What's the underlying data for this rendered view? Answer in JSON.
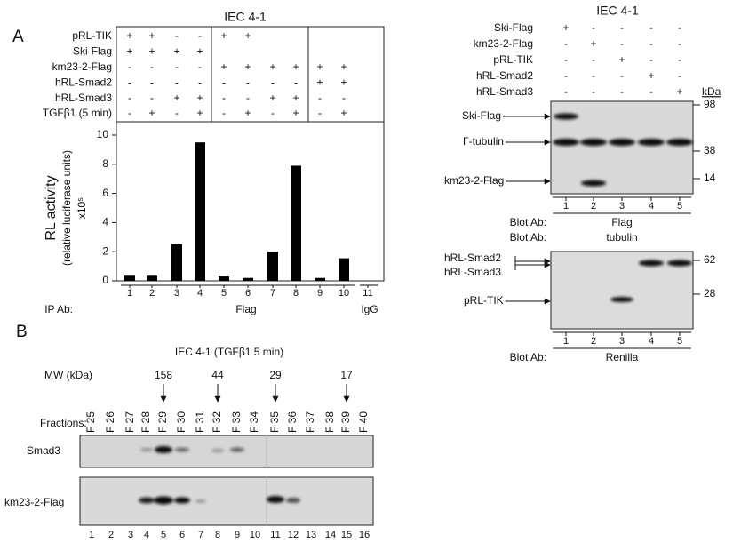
{
  "panel_a": {
    "label": "A",
    "title": "IEC 4-1",
    "conditions": [
      {
        "name": "pRL-TIK",
        "values": [
          "+",
          "+",
          "-",
          "-",
          "+",
          "+",
          null,
          null,
          null,
          null
        ]
      },
      {
        "name": "Ski-Flag",
        "values": [
          "+",
          "+",
          "+",
          "+",
          null,
          null,
          null,
          null,
          null,
          null
        ]
      },
      {
        "name": "km23-2-Flag",
        "values": [
          "-",
          "-",
          "-",
          "-",
          "+",
          "+",
          "+",
          "+",
          "+",
          "+"
        ]
      },
      {
        "name": "hRL-Smad2",
        "values": [
          "-",
          "-",
          "-",
          "-",
          "-",
          "-",
          "-",
          "-",
          "+",
          "+"
        ]
      },
      {
        "name": "hRL-Smad3",
        "values": [
          "-",
          "-",
          "+",
          "+",
          "-",
          "-",
          "+",
          "+",
          "-",
          "-"
        ]
      },
      {
        "name": "TGFβ1 (5 min)",
        "values": [
          "-",
          "+",
          "-",
          "+",
          "-",
          "+",
          "-",
          "+",
          "-",
          "+"
        ]
      }
    ],
    "ip_ab_label": "IP Ab:",
    "ip_ab": [
      "Flag",
      "IgG"
    ]
  },
  "chart_data": {
    "type": "bar",
    "y_label": [
      "RL activity",
      "(relative luciferase units)",
      "x10⁵"
    ],
    "categories": [
      "1",
      "2",
      "3",
      "4",
      "5",
      "6",
      "7",
      "8",
      "9",
      "10",
      "11"
    ],
    "values": [
      0.35,
      0.35,
      2.5,
      9.5,
      0.3,
      0.2,
      2.0,
      7.9,
      0.2,
      1.55,
      null
    ],
    "color": "#000000",
    "ylim": [
      0,
      10
    ],
    "yticks": [
      0,
      2,
      4,
      6,
      8,
      10
    ]
  },
  "blot_panel": {
    "title": "IEC 4-1",
    "conditions": [
      {
        "name": "Ski-Flag",
        "values": [
          "+",
          "-",
          "-",
          "-",
          "-"
        ]
      },
      {
        "name": "km23-2-Flag",
        "values": [
          "-",
          "+",
          "-",
          "-",
          "-"
        ]
      },
      {
        "name": "pRL-TIK",
        "values": [
          "-",
          "-",
          "+",
          "-",
          "-"
        ]
      },
      {
        "name": "hRL-Smad2",
        "values": [
          "-",
          "-",
          "-",
          "+",
          "-"
        ]
      },
      {
        "name": "hRL-Smad3",
        "values": [
          "-",
          "-",
          "-",
          "-",
          "+"
        ]
      }
    ],
    "kda_label": "kDa",
    "blot1": {
      "band_labels": [
        "Ski-Flag",
        "Γ-tubulin",
        "km23-2-Flag"
      ],
      "markers": [
        "98",
        "38",
        "14"
      ],
      "lanes": [
        "1",
        "2",
        "3",
        "4",
        "5"
      ]
    },
    "blot1_ab": [
      {
        "label": "Blot Ab:",
        "value": "Flag"
      },
      {
        "label": "Blot Ab:",
        "value": "tubulin"
      }
    ],
    "blot2": {
      "band_labels": [
        "hRL-Smad2",
        "hRL-Smad3",
        "pRL-TIK"
      ],
      "markers": [
        "62",
        "28"
      ],
      "lanes": [
        "1",
        "2",
        "3",
        "4",
        "5"
      ]
    },
    "blot2_ab": {
      "label": "Blot Ab:",
      "value": "Renilla"
    }
  },
  "panel_b": {
    "label": "B",
    "title": "IEC 4-1 (TGFβ1 5 min)",
    "mw_label": "MW (kDa)",
    "mw_markers": [
      "158",
      "44",
      "29",
      "17"
    ],
    "fractions_label": "Fractions:",
    "fractions": [
      "F 25",
      "F 26",
      "F 27",
      "F 28",
      "F 29",
      "F 30",
      "F 31",
      "F 32",
      "F 33",
      "F 34",
      "F 35",
      "F 36",
      "F 37",
      "F 38",
      "F 39",
      "F 40"
    ],
    "blots": [
      "Smad3",
      "km23-2-Flag"
    ],
    "lanes": [
      "1",
      "2",
      "3",
      "4",
      "5",
      "6",
      "7",
      "8",
      "9",
      "10",
      "11",
      "12",
      "13",
      "14",
      "15",
      "16"
    ]
  }
}
